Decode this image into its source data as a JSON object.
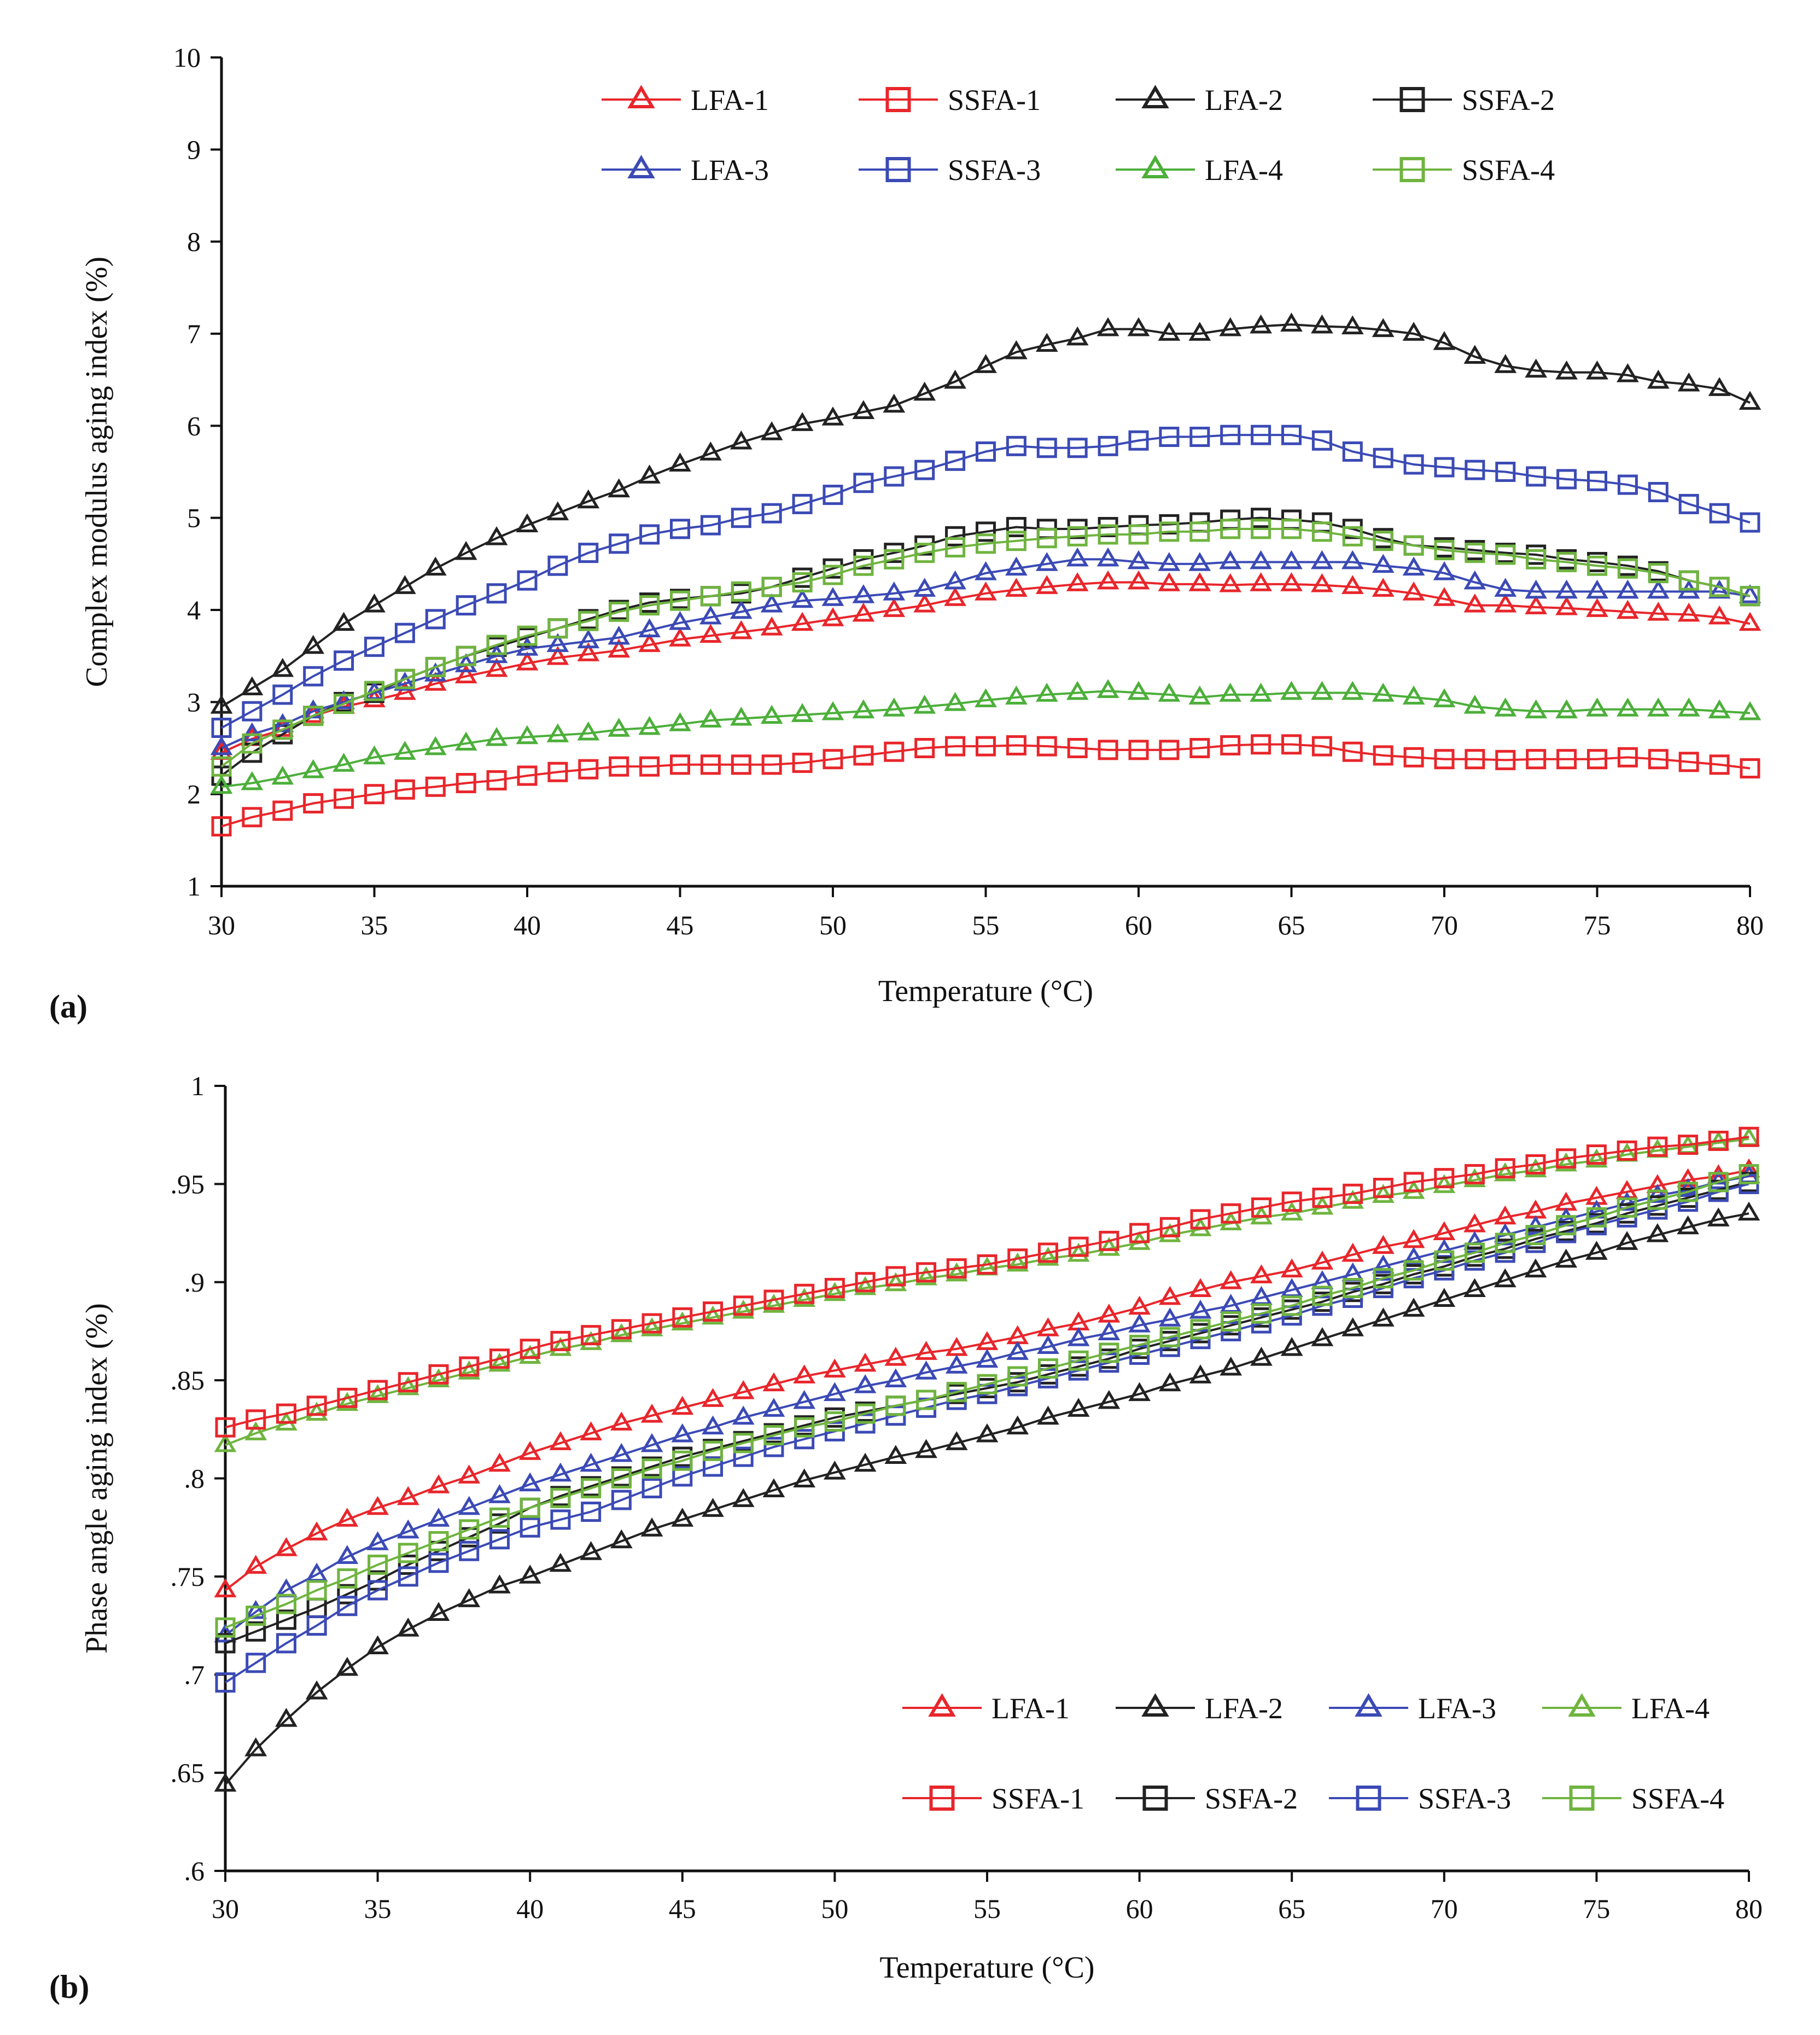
{
  "figure": {
    "panel_labels": [
      "(a)",
      "(b)"
    ]
  },
  "chart_data": [
    {
      "type": "line",
      "panel": "(a)",
      "title": "",
      "xlabel": "Temperature (°C)",
      "ylabel": "Complex modulus aging index (%)",
      "xlim": [
        30,
        80
      ],
      "ylim": [
        1,
        10
      ],
      "xticks": [
        30,
        35,
        40,
        45,
        50,
        55,
        60,
        65,
        70,
        75,
        80
      ],
      "yticks": [
        1,
        2,
        3,
        4,
        5,
        6,
        7,
        8,
        9,
        10
      ],
      "grid": false,
      "legend": {
        "position": "top",
        "columns": 4
      },
      "x": [
        30,
        31,
        32,
        33,
        34,
        35,
        36,
        37,
        38,
        39,
        40,
        41,
        42,
        43,
        44,
        45,
        46,
        47,
        48,
        49,
        50,
        51,
        52,
        53,
        54,
        55,
        56,
        57,
        58,
        59,
        60,
        61,
        62,
        63,
        64,
        65,
        66,
        67,
        68,
        69,
        70,
        71,
        72,
        73,
        74,
        75,
        76,
        77,
        78,
        79,
        80
      ],
      "series": [
        {
          "name": "LFA-1",
          "marker": "triangle",
          "color": "#e8262b",
          "values": [
            2.45,
            2.6,
            2.7,
            2.85,
            2.95,
            3.02,
            3.1,
            3.2,
            3.28,
            3.35,
            3.42,
            3.48,
            3.52,
            3.56,
            3.62,
            3.68,
            3.72,
            3.76,
            3.8,
            3.85,
            3.9,
            3.95,
            4.0,
            4.05,
            4.12,
            4.18,
            4.22,
            4.25,
            4.28,
            4.3,
            4.3,
            4.28,
            4.28,
            4.27,
            4.28,
            4.28,
            4.27,
            4.25,
            4.22,
            4.18,
            4.12,
            4.05,
            4.05,
            4.03,
            4.02,
            4.0,
            3.98,
            3.96,
            3.95,
            3.92,
            3.85
          ]
        },
        {
          "name": "SSFA-1",
          "marker": "square",
          "color": "#e8262b",
          "values": [
            1.65,
            1.75,
            1.82,
            1.9,
            1.95,
            2.0,
            2.05,
            2.08,
            2.12,
            2.15,
            2.2,
            2.24,
            2.27,
            2.3,
            2.3,
            2.32,
            2.32,
            2.32,
            2.32,
            2.34,
            2.38,
            2.42,
            2.46,
            2.5,
            2.52,
            2.52,
            2.53,
            2.52,
            2.5,
            2.48,
            2.48,
            2.48,
            2.5,
            2.53,
            2.54,
            2.54,
            2.52,
            2.46,
            2.42,
            2.4,
            2.38,
            2.38,
            2.37,
            2.38,
            2.38,
            2.38,
            2.4,
            2.38,
            2.35,
            2.32,
            2.28
          ]
        },
        {
          "name": "LFA-2",
          "marker": "triangle",
          "color": "#222222",
          "values": [
            2.95,
            3.15,
            3.35,
            3.6,
            3.85,
            4.05,
            4.25,
            4.45,
            4.62,
            4.78,
            4.92,
            5.05,
            5.18,
            5.3,
            5.45,
            5.58,
            5.7,
            5.82,
            5.92,
            6.02,
            6.08,
            6.15,
            6.22,
            6.35,
            6.48,
            6.65,
            6.8,
            6.88,
            6.95,
            7.05,
            7.05,
            7.0,
            7.0,
            7.05,
            7.08,
            7.1,
            7.08,
            7.07,
            7.04,
            7.0,
            6.9,
            6.75,
            6.65,
            6.6,
            6.58,
            6.58,
            6.55,
            6.48,
            6.45,
            6.4,
            6.25
          ]
        },
        {
          "name": "SSFA-2",
          "marker": "square",
          "color": "#222222",
          "values": [
            2.2,
            2.45,
            2.65,
            2.85,
            3.0,
            3.1,
            3.25,
            3.38,
            3.5,
            3.6,
            3.7,
            3.8,
            3.9,
            4.0,
            4.08,
            4.12,
            4.15,
            4.18,
            4.25,
            4.35,
            4.45,
            4.55,
            4.62,
            4.7,
            4.8,
            4.85,
            4.9,
            4.88,
            4.88,
            4.9,
            4.92,
            4.93,
            4.95,
            4.98,
            5.0,
            4.98,
            4.95,
            4.88,
            4.78,
            4.7,
            4.68,
            4.65,
            4.62,
            4.6,
            4.55,
            4.52,
            4.48,
            4.42,
            4.32,
            4.25,
            4.15
          ]
        },
        {
          "name": "LFA-3",
          "marker": "triangle",
          "color": "#3b4ab5",
          "values": [
            2.5,
            2.65,
            2.75,
            2.9,
            3.0,
            3.1,
            3.2,
            3.3,
            3.4,
            3.5,
            3.58,
            3.62,
            3.66,
            3.7,
            3.78,
            3.86,
            3.92,
            3.98,
            4.05,
            4.1,
            4.12,
            4.15,
            4.18,
            4.22,
            4.3,
            4.4,
            4.45,
            4.5,
            4.55,
            4.55,
            4.52,
            4.5,
            4.5,
            4.52,
            4.52,
            4.52,
            4.52,
            4.52,
            4.48,
            4.45,
            4.4,
            4.3,
            4.22,
            4.2,
            4.2,
            4.2,
            4.2,
            4.2,
            4.2,
            4.2,
            4.15
          ]
        },
        {
          "name": "SSFA-3",
          "marker": "square",
          "color": "#3b4ab5",
          "values": [
            2.72,
            2.9,
            3.08,
            3.28,
            3.45,
            3.6,
            3.75,
            3.9,
            4.05,
            4.18,
            4.32,
            4.48,
            4.62,
            4.72,
            4.82,
            4.88,
            4.92,
            5.0,
            5.05,
            5.15,
            5.25,
            5.38,
            5.45,
            5.52,
            5.62,
            5.72,
            5.78,
            5.76,
            5.76,
            5.78,
            5.84,
            5.88,
            5.88,
            5.9,
            5.9,
            5.9,
            5.84,
            5.72,
            5.65,
            5.58,
            5.55,
            5.52,
            5.5,
            5.45,
            5.42,
            5.4,
            5.36,
            5.28,
            5.15,
            5.05,
            4.95
          ]
        },
        {
          "name": "LFA-4",
          "marker": "triangle",
          "color": "#4caf3a",
          "values": [
            2.08,
            2.12,
            2.18,
            2.25,
            2.32,
            2.4,
            2.45,
            2.5,
            2.55,
            2.6,
            2.62,
            2.64,
            2.66,
            2.7,
            2.72,
            2.76,
            2.8,
            2.82,
            2.84,
            2.86,
            2.88,
            2.9,
            2.92,
            2.95,
            2.98,
            3.02,
            3.05,
            3.08,
            3.1,
            3.12,
            3.1,
            3.08,
            3.05,
            3.08,
            3.08,
            3.1,
            3.1,
            3.1,
            3.08,
            3.05,
            3.02,
            2.95,
            2.92,
            2.9,
            2.9,
            2.92,
            2.92,
            2.92,
            2.92,
            2.9,
            2.88
          ]
        },
        {
          "name": "SSFA-4",
          "marker": "square",
          "color": "#6fb43f",
          "values": [
            2.3,
            2.55,
            2.7,
            2.85,
            2.98,
            3.12,
            3.25,
            3.38,
            3.5,
            3.62,
            3.72,
            3.8,
            3.88,
            3.98,
            4.05,
            4.1,
            4.15,
            4.2,
            4.25,
            4.3,
            4.38,
            4.48,
            4.55,
            4.62,
            4.68,
            4.72,
            4.75,
            4.78,
            4.8,
            4.82,
            4.82,
            4.85,
            4.85,
            4.88,
            4.88,
            4.88,
            4.85,
            4.8,
            4.75,
            4.7,
            4.65,
            4.62,
            4.6,
            4.55,
            4.52,
            4.48,
            4.45,
            4.4,
            4.32,
            4.25,
            4.15
          ]
        }
      ]
    },
    {
      "type": "line",
      "panel": "(b)",
      "title": "",
      "xlabel": "Temperature (°C)",
      "ylabel": "Phase angle aging index (%)",
      "xlim": [
        30,
        80
      ],
      "ylim": [
        0.6,
        1.0
      ],
      "xticks": [
        30,
        35,
        40,
        45,
        50,
        55,
        60,
        65,
        70,
        75,
        80
      ],
      "yticks": [
        0.6,
        0.65,
        0.7,
        0.75,
        0.8,
        0.85,
        0.9,
        0.95,
        1
      ],
      "grid": false,
      "legend": {
        "position": "bottom-right",
        "columns": 4
      },
      "x": [
        30,
        31,
        32,
        33,
        34,
        35,
        36,
        37,
        38,
        39,
        40,
        41,
        42,
        43,
        44,
        45,
        46,
        47,
        48,
        49,
        50,
        51,
        52,
        53,
        54,
        55,
        56,
        57,
        58,
        59,
        60,
        61,
        62,
        63,
        64,
        65,
        66,
        67,
        68,
        69,
        70,
        71,
        72,
        73,
        74,
        75,
        76,
        77,
        78,
        79,
        80
      ],
      "series": [
        {
          "name": "LFA-1",
          "marker": "triangle",
          "color": "#e8262b",
          "values": [
            0.743,
            0.755,
            0.764,
            0.772,
            0.779,
            0.785,
            0.79,
            0.796,
            0.801,
            0.807,
            0.813,
            0.818,
            0.823,
            0.828,
            0.832,
            0.836,
            0.84,
            0.844,
            0.848,
            0.852,
            0.855,
            0.858,
            0.861,
            0.864,
            0.866,
            0.869,
            0.872,
            0.876,
            0.879,
            0.883,
            0.887,
            0.892,
            0.896,
            0.9,
            0.903,
            0.906,
            0.91,
            0.914,
            0.918,
            0.921,
            0.925,
            0.929,
            0.933,
            0.936,
            0.94,
            0.943,
            0.946,
            0.949,
            0.952,
            0.954,
            0.957
          ]
        },
        {
          "name": "LFA-2",
          "marker": "triangle",
          "color": "#222222",
          "values": [
            0.644,
            0.662,
            0.677,
            0.691,
            0.703,
            0.714,
            0.723,
            0.731,
            0.738,
            0.745,
            0.75,
            0.756,
            0.762,
            0.768,
            0.774,
            0.779,
            0.784,
            0.789,
            0.794,
            0.799,
            0.803,
            0.807,
            0.811,
            0.814,
            0.818,
            0.822,
            0.826,
            0.831,
            0.835,
            0.839,
            0.843,
            0.848,
            0.852,
            0.856,
            0.861,
            0.866,
            0.871,
            0.876,
            0.881,
            0.886,
            0.891,
            0.896,
            0.901,
            0.906,
            0.911,
            0.915,
            0.92,
            0.924,
            0.928,
            0.932,
            0.935
          ]
        },
        {
          "name": "LFA-3",
          "marker": "triangle",
          "color": "#3b4ab5",
          "values": [
            0.72,
            0.732,
            0.743,
            0.751,
            0.76,
            0.767,
            0.773,
            0.779,
            0.785,
            0.791,
            0.797,
            0.802,
            0.807,
            0.812,
            0.817,
            0.822,
            0.826,
            0.831,
            0.835,
            0.839,
            0.843,
            0.847,
            0.85,
            0.854,
            0.857,
            0.86,
            0.864,
            0.867,
            0.871,
            0.874,
            0.878,
            0.881,
            0.885,
            0.888,
            0.892,
            0.896,
            0.9,
            0.904,
            0.908,
            0.912,
            0.916,
            0.92,
            0.924,
            0.928,
            0.932,
            0.936,
            0.94,
            0.944,
            0.947,
            0.951,
            0.954
          ]
        },
        {
          "name": "LFA-4",
          "marker": "triangle",
          "color": "#6fb43f",
          "values": [
            0.817,
            0.823,
            0.828,
            0.833,
            0.838,
            0.842,
            0.846,
            0.85,
            0.854,
            0.858,
            0.862,
            0.866,
            0.869,
            0.873,
            0.876,
            0.879,
            0.882,
            0.885,
            0.888,
            0.891,
            0.894,
            0.897,
            0.899,
            0.902,
            0.904,
            0.907,
            0.909,
            0.912,
            0.914,
            0.917,
            0.92,
            0.924,
            0.927,
            0.93,
            0.933,
            0.935,
            0.938,
            0.941,
            0.944,
            0.946,
            0.949,
            0.952,
            0.955,
            0.957,
            0.96,
            0.962,
            0.965,
            0.967,
            0.969,
            0.971,
            0.973
          ]
        },
        {
          "name": "SSFA-1",
          "marker": "square",
          "color": "#e8262b",
          "values": [
            0.826,
            0.83,
            0.833,
            0.837,
            0.841,
            0.845,
            0.849,
            0.853,
            0.857,
            0.861,
            0.866,
            0.87,
            0.873,
            0.876,
            0.879,
            0.882,
            0.885,
            0.888,
            0.891,
            0.894,
            0.897,
            0.9,
            0.903,
            0.905,
            0.907,
            0.909,
            0.912,
            0.915,
            0.918,
            0.921,
            0.925,
            0.928,
            0.932,
            0.935,
            0.938,
            0.941,
            0.943,
            0.945,
            0.948,
            0.951,
            0.953,
            0.955,
            0.958,
            0.96,
            0.963,
            0.965,
            0.967,
            0.969,
            0.97,
            0.972,
            0.974
          ]
        },
        {
          "name": "SSFA-2",
          "marker": "square",
          "color": "#222222",
          "values": [
            0.716,
            0.722,
            0.728,
            0.734,
            0.741,
            0.748,
            0.756,
            0.763,
            0.77,
            0.777,
            0.785,
            0.791,
            0.796,
            0.801,
            0.806,
            0.811,
            0.815,
            0.819,
            0.823,
            0.827,
            0.831,
            0.834,
            0.837,
            0.84,
            0.843,
            0.846,
            0.849,
            0.853,
            0.857,
            0.861,
            0.866,
            0.87,
            0.874,
            0.878,
            0.882,
            0.886,
            0.89,
            0.895,
            0.899,
            0.904,
            0.908,
            0.913,
            0.917,
            0.922,
            0.926,
            0.93,
            0.935,
            0.939,
            0.943,
            0.947,
            0.951
          ]
        },
        {
          "name": "SSFA-3",
          "marker": "square",
          "color": "#3b4ab5",
          "values": [
            0.696,
            0.706,
            0.716,
            0.725,
            0.735,
            0.743,
            0.75,
            0.757,
            0.763,
            0.769,
            0.775,
            0.779,
            0.783,
            0.789,
            0.795,
            0.801,
            0.806,
            0.811,
            0.816,
            0.82,
            0.824,
            0.828,
            0.832,
            0.836,
            0.84,
            0.843,
            0.847,
            0.851,
            0.855,
            0.859,
            0.863,
            0.867,
            0.871,
            0.875,
            0.879,
            0.883,
            0.888,
            0.892,
            0.897,
            0.902,
            0.906,
            0.911,
            0.915,
            0.92,
            0.925,
            0.929,
            0.933,
            0.937,
            0.941,
            0.946,
            0.95
          ]
        },
        {
          "name": "SSFA-4",
          "marker": "square",
          "color": "#6fb43f",
          "values": [
            0.724,
            0.73,
            0.736,
            0.743,
            0.749,
            0.756,
            0.762,
            0.768,
            0.774,
            0.78,
            0.785,
            0.79,
            0.795,
            0.8,
            0.805,
            0.809,
            0.814,
            0.818,
            0.822,
            0.826,
            0.829,
            0.833,
            0.837,
            0.84,
            0.844,
            0.848,
            0.852,
            0.856,
            0.86,
            0.864,
            0.868,
            0.872,
            0.876,
            0.88,
            0.884,
            0.888,
            0.893,
            0.897,
            0.902,
            0.906,
            0.911,
            0.915,
            0.92,
            0.924,
            0.929,
            0.933,
            0.938,
            0.942,
            0.946,
            0.951,
            0.955
          ]
        }
      ]
    }
  ]
}
